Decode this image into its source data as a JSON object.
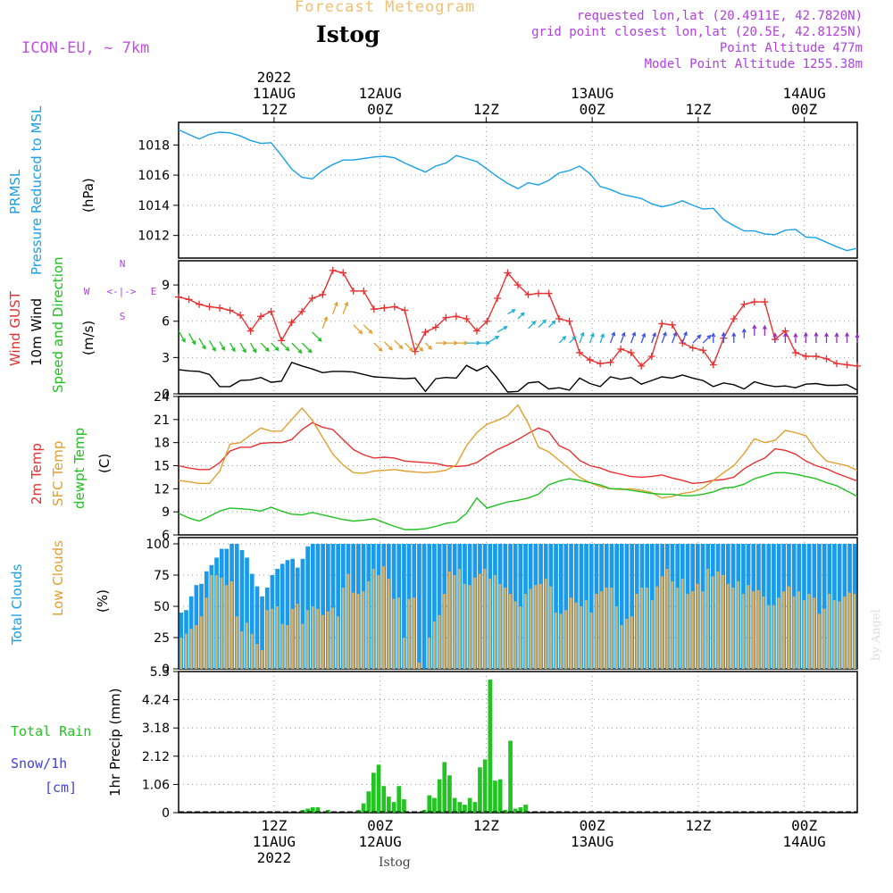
{
  "header": {
    "title_top": "Forecast Meteogram",
    "location": "Istog",
    "model": "ICON-EU, ~ 7km",
    "requested": "requested lon,lat (20.4911E, 42.7820N)",
    "grid_point": "grid point closest lon,lat (20.5E, 42.8125N)",
    "point_altitude": "Point Altitude 477m",
    "model_altitude": "Model Point Altitude 1255.38m",
    "footer_location": "Istog",
    "watermark": "by Angel"
  },
  "time_axis": {
    "start_hour": 0,
    "end_hour": 64,
    "top_labels": [
      {
        "hour": 9,
        "lines": [
          "2022",
          "11AUG",
          "12Z"
        ]
      },
      {
        "hour": 19,
        "lines": [
          "12AUG",
          "00Z"
        ]
      },
      {
        "hour": 29,
        "lines": [
          "12Z"
        ]
      },
      {
        "hour": 39,
        "lines": [
          "13AUG",
          "00Z"
        ]
      },
      {
        "hour": 49,
        "lines": [
          "12Z"
        ]
      },
      {
        "hour": 59,
        "lines": [
          "14AUG",
          "00Z"
        ]
      }
    ],
    "bottom_labels": [
      {
        "hour": 9,
        "lines": [
          "12Z",
          "11AUG",
          "2022"
        ]
      },
      {
        "hour": 19,
        "lines": [
          "00Z",
          "12AUG"
        ]
      },
      {
        "hour": 29,
        "lines": [
          "12Z"
        ]
      },
      {
        "hour": 39,
        "lines": [
          "00Z",
          "13AUG"
        ]
      },
      {
        "hour": 49,
        "lines": [
          "12Z"
        ]
      },
      {
        "hour": 59,
        "lines": [
          "00Z",
          "14AUG"
        ]
      }
    ]
  },
  "colors": {
    "pressure": "#1aa0e8",
    "gust": "#e83030",
    "wind": "#000000",
    "t2m": "#e83030",
    "sfc": "#e0a030",
    "dew": "#20c020",
    "total_cloud": "#1a9ae8",
    "low_cloud": "#d8b060",
    "rain": "#22c422",
    "snow": "#4040e0",
    "purple": "#b040e0"
  },
  "chart_data": [
    {
      "type": "line",
      "id": "pressure",
      "title": "PRMSL Pressure Reduced to MSL",
      "ylabel_lines": [
        "PRMSL",
        "Pressure Reduced to MSL"
      ],
      "unit": "(hPa)",
      "ylim": [
        1010.5,
        1019.5
      ],
      "yticks": [
        1012,
        1014,
        1016,
        1018
      ],
      "series": [
        {
          "name": "MSL Pressure",
          "values": [
            1019.0,
            1018.7,
            1018.4,
            1018.7,
            1018.85,
            1018.8,
            1018.6,
            1018.3,
            1018.1,
            1018.15,
            1017.3,
            1016.4,
            1015.85,
            1015.75,
            1016.3,
            1016.7,
            1017.0,
            1017.0,
            1017.1,
            1017.2,
            1017.25,
            1017.15,
            1016.8,
            1016.5,
            1016.2,
            1016.6,
            1016.8,
            1017.3,
            1017.1,
            1016.9,
            1016.4,
            1015.9,
            1015.45,
            1015.1,
            1015.5,
            1015.35,
            1015.65,
            1016.15,
            1016.3,
            1016.6,
            1016.1,
            1015.25,
            1015.05,
            1014.75,
            1014.6,
            1014.45,
            1014.1,
            1013.9,
            1014.05,
            1014.3,
            1014.0,
            1013.75,
            1013.8,
            1013.05,
            1012.65,
            1012.3,
            1012.3,
            1012.1,
            1012.05,
            1012.35,
            1012.4,
            1011.9,
            1011.85,
            1011.55,
            1011.25,
            1011.0,
            1011.15
          ]
        }
      ]
    },
    {
      "type": "line",
      "id": "wind",
      "title": "Wind GUST / 10m Wind Speed and Direction",
      "unit": "(m/s)",
      "ylim": [
        0,
        11
      ],
      "yticks": [
        0,
        3,
        6,
        9
      ],
      "compass": {
        "n": "N",
        "s": "S",
        "w": "W",
        "e": "E",
        "arrow": "<-|->"
      },
      "series": [
        {
          "name": "Wind GUST",
          "values": [
            8.0,
            7.8,
            7.4,
            7.2,
            7.1,
            6.9,
            6.5,
            5.2,
            6.4,
            6.8,
            4.4,
            5.9,
            6.8,
            7.9,
            8.2,
            10.2,
            10.0,
            8.5,
            8.5,
            7.0,
            7.1,
            7.2,
            6.9,
            3.5,
            5.1,
            5.5,
            6.3,
            6.4,
            6.2,
            5.2,
            6.0,
            7.9,
            10.0,
            9.0,
            8.2,
            8.3,
            8.3,
            6.2,
            6.0,
            3.4,
            2.8,
            2.5,
            2.6,
            3.7,
            3.4,
            2.3,
            3.1,
            5.8,
            5.7,
            4.2,
            3.8,
            3.6,
            2.4,
            4.6,
            6.2,
            7.4,
            7.6,
            7.6,
            4.5,
            5.2,
            3.4,
            3.1,
            3.1,
            2.9,
            2.5,
            2.4,
            2.3
          ]
        },
        {
          "name": "10m Wind Speed",
          "values": [
            2.0,
            1.9,
            1.85,
            1.6,
            0.6,
            0.6,
            1.1,
            1.15,
            1.35,
            0.95,
            1.05,
            2.6,
            2.3,
            2.05,
            1.75,
            1.85,
            1.85,
            1.8,
            1.6,
            1.4,
            1.35,
            1.3,
            1.25,
            1.3,
            0.2,
            1.25,
            1.35,
            1.3,
            2.35,
            1.9,
            2.3,
            1.3,
            0.15,
            0.2,
            0.9,
            1.0,
            0.4,
            0.5,
            0.3,
            1.3,
            0.85,
            0.6,
            1.4,
            1.2,
            1.35,
            0.8,
            1.1,
            1.4,
            1.3,
            1.55,
            1.3,
            1.1,
            0.6,
            0.9,
            0.75,
            0.4,
            1.0,
            0.75,
            0.6,
            0.65,
            0.5,
            0.8,
            0.85,
            0.7,
            0.7,
            0.75,
            0.3
          ]
        },
        {
          "name": "Wind Direction (deg)",
          "values": [
            330,
            330,
            330,
            330,
            330,
            330,
            330,
            330,
            315,
            315,
            315,
            315,
            315,
            315,
            200,
            200,
            200,
            315,
            315,
            315,
            315,
            315,
            315,
            315,
            315,
            270,
            270,
            270,
            270,
            270,
            240,
            240,
            240,
            225,
            225,
            225,
            225,
            225,
            225,
            200,
            200,
            200,
            200,
            200,
            200,
            200,
            200,
            200,
            200,
            200,
            225,
            225,
            180,
            180,
            180,
            180,
            180,
            180,
            180,
            180,
            180,
            180,
            180,
            180,
            180,
            180,
            180
          ]
        }
      ]
    },
    {
      "type": "line",
      "id": "temperature",
      "title": "2m Temp / SFC Temp / dewpt Temp",
      "unit": "(C)",
      "ylim": [
        6,
        24
      ],
      "yticks": [
        6,
        9,
        12,
        15,
        18,
        21,
        24
      ],
      "series": [
        {
          "name": "2m Temp",
          "values": [
            15.0,
            14.7,
            14.5,
            14.5,
            15.4,
            16.9,
            17.4,
            17.4,
            17.9,
            18.0,
            18.0,
            18.4,
            19.7,
            20.6,
            20.0,
            19.7,
            18.4,
            17.1,
            16.4,
            16.0,
            16.1,
            16.0,
            15.6,
            15.5,
            15.4,
            15.3,
            15.0,
            14.9,
            15.0,
            15.4,
            16.3,
            17.1,
            17.7,
            18.4,
            19.2,
            19.9,
            19.4,
            17.6,
            17.0,
            15.7,
            15.0,
            14.7,
            14.2,
            13.9,
            13.6,
            13.5,
            13.6,
            13.8,
            13.4,
            13.1,
            12.7,
            12.8,
            13.1,
            13.2,
            13.5,
            14.6,
            15.4,
            16.0,
            17.2,
            17.0,
            16.5,
            15.6,
            15.0,
            14.6,
            14.0,
            13.5,
            13.0
          ]
        },
        {
          "name": "SFC Temp",
          "values": [
            13.1,
            12.9,
            12.7,
            12.7,
            14.3,
            17.8,
            18.0,
            19.0,
            19.9,
            19.5,
            19.5,
            21.0,
            22.5,
            20.9,
            18.7,
            16.5,
            15.1,
            14.1,
            14.0,
            14.3,
            14.4,
            14.5,
            14.3,
            14.2,
            14.1,
            14.2,
            14.4,
            15.1,
            17.6,
            19.3,
            20.4,
            20.9,
            21.5,
            22.9,
            20.5,
            17.4,
            16.8,
            15.7,
            14.6,
            13.5,
            12.8,
            12.3,
            12.0,
            11.9,
            12.0,
            11.8,
            11.5,
            10.8,
            11.0,
            11.4,
            11.6,
            12.1,
            13.1,
            14.1,
            15.0,
            16.6,
            18.5,
            18.0,
            18.3,
            19.6,
            19.3,
            18.9,
            17.0,
            15.6,
            15.3,
            15.0,
            14.4
          ]
        },
        {
          "name": "dewpt Temp",
          "values": [
            8.8,
            8.2,
            7.8,
            8.4,
            9.1,
            9.5,
            9.4,
            9.3,
            9.1,
            9.6,
            9.1,
            8.7,
            8.6,
            8.9,
            8.6,
            8.3,
            8.0,
            7.8,
            7.9,
            8.1,
            7.6,
            7.1,
            6.7,
            6.7,
            6.8,
            7.1,
            7.5,
            7.7,
            8.8,
            10.8,
            9.5,
            9.9,
            10.3,
            10.5,
            10.8,
            11.3,
            12.5,
            13.0,
            13.3,
            13.1,
            12.8,
            12.5,
            12.0,
            12.0,
            11.8,
            11.6,
            11.4,
            11.3,
            11.3,
            11.1,
            11.1,
            11.3,
            11.6,
            12.1,
            12.2,
            12.6,
            13.3,
            13.7,
            14.1,
            14.1,
            13.9,
            13.6,
            13.3,
            12.8,
            12.4,
            11.7,
            11.0
          ]
        }
      ]
    },
    {
      "type": "bar",
      "id": "clouds",
      "title": "Total Clouds / Low Clouds",
      "unit": "(%)",
      "ylim": [
        0,
        105
      ],
      "yticks": [
        0,
        25,
        50,
        75,
        100
      ],
      "series": [
        {
          "name": "Total Clouds",
          "values": [
            45,
            47,
            58,
            67,
            68,
            78,
            83,
            89,
            96,
            96,
            100,
            100,
            95,
            89,
            76,
            66,
            58,
            65,
            75,
            80,
            84,
            87,
            88,
            81,
            88,
            98,
            100,
            100,
            100,
            100,
            100,
            100,
            100,
            100,
            100,
            100,
            100,
            100,
            100,
            100,
            100,
            100,
            100,
            100,
            100,
            100,
            100,
            100,
            100,
            100,
            100,
            100,
            100,
            100,
            100,
            100,
            100,
            100,
            100,
            100,
            100,
            100,
            100,
            100,
            100,
            100,
            100,
            100,
            100,
            100,
            100,
            100,
            100,
            100,
            100,
            100,
            100,
            100,
            100,
            100,
            100,
            100,
            100,
            100,
            100,
            100,
            100,
            100,
            100,
            100,
            100,
            100,
            100,
            100,
            100,
            100,
            100,
            100,
            100,
            100,
            100,
            100,
            100,
            100,
            100,
            100,
            100,
            100,
            100,
            100,
            100,
            100,
            100,
            100,
            100,
            100,
            100,
            100,
            100,
            100,
            100,
            100,
            100,
            100,
            100,
            100,
            100,
            100,
            100,
            100,
            100,
            100,
            100,
            100
          ]
        },
        {
          "name": "Low Clouds",
          "values": [
            25,
            28,
            32,
            35,
            42,
            57,
            75,
            75,
            73,
            67,
            70,
            42,
            30,
            37,
            28,
            20,
            15,
            47,
            48,
            50,
            36,
            35,
            48,
            52,
            36,
            47,
            50,
            48,
            43,
            46,
            49,
            42,
            65,
            76,
            61,
            60,
            62,
            70,
            80,
            75,
            82,
            72,
            56,
            57,
            25,
            56,
            57,
            5,
            0,
            25,
            38,
            43,
            60,
            78,
            75,
            80,
            68,
            67,
            73,
            76,
            80,
            72,
            75,
            68,
            65,
            60,
            54,
            50,
            60,
            64,
            67,
            68,
            72,
            66,
            45,
            44,
            47,
            57,
            53,
            50,
            55,
            45,
            60,
            62,
            65,
            65,
            50,
            35,
            40,
            42,
            60,
            65,
            65,
            55,
            66,
            74,
            80,
            70,
            65,
            72,
            60,
            62,
            68,
            62,
            80,
            74,
            78,
            75,
            68,
            65,
            70,
            60,
            67,
            62,
            63,
            58,
            51,
            51,
            57,
            62,
            66,
            58,
            62,
            55,
            60,
            57,
            44,
            48,
            60,
            55,
            54,
            58,
            61,
            60
          ]
        }
      ]
    },
    {
      "type": "bar",
      "id": "precip",
      "title": "Total Rain / Snow/1h",
      "legend_labels": [
        "Total  Rain",
        "Snow/1h",
        "[cm]"
      ],
      "unit": "1hr Precip (mm)",
      "ylim": [
        0,
        5.3
      ],
      "yticks": [
        0,
        1.06,
        2.12,
        3.18,
        4.24,
        5.3
      ],
      "series": [
        {
          "name": "Total Rain",
          "values": [
            0,
            0,
            0,
            0,
            0,
            0,
            0,
            0,
            0,
            0,
            0,
            0,
            0,
            0,
            0,
            0,
            0,
            0,
            0,
            0,
            0,
            0,
            0,
            0,
            0.1,
            0.15,
            0.2,
            0.2,
            0,
            0.1,
            0,
            0,
            0,
            0,
            0,
            0.1,
            0.35,
            0.8,
            1.5,
            1.8,
            1.0,
            0.6,
            0.4,
            1.0,
            0.5,
            0,
            0,
            0,
            0.1,
            0.65,
            0.55,
            1.25,
            1.9,
            1.4,
            0.55,
            0.4,
            0.3,
            0.55,
            0.4,
            1.7,
            2.0,
            5.0,
            1.2,
            1.25,
            0.1,
            2.7,
            0.15,
            0.2,
            0.3,
            0,
            0,
            0,
            0,
            0,
            0,
            0,
            0,
            0,
            0,
            0,
            0,
            0,
            0,
            0,
            0,
            0,
            0,
            0,
            0,
            0,
            0,
            0,
            0,
            0,
            0,
            0,
            0,
            0,
            0,
            0,
            0,
            0,
            0,
            0,
            0,
            0,
            0,
            0,
            0,
            0,
            0,
            0,
            0,
            0,
            0,
            0,
            0,
            0,
            0,
            0,
            0,
            0,
            0,
            0,
            0,
            0,
            0,
            0,
            0,
            0,
            0,
            0,
            0,
            0
          ]
        }
      ]
    }
  ]
}
